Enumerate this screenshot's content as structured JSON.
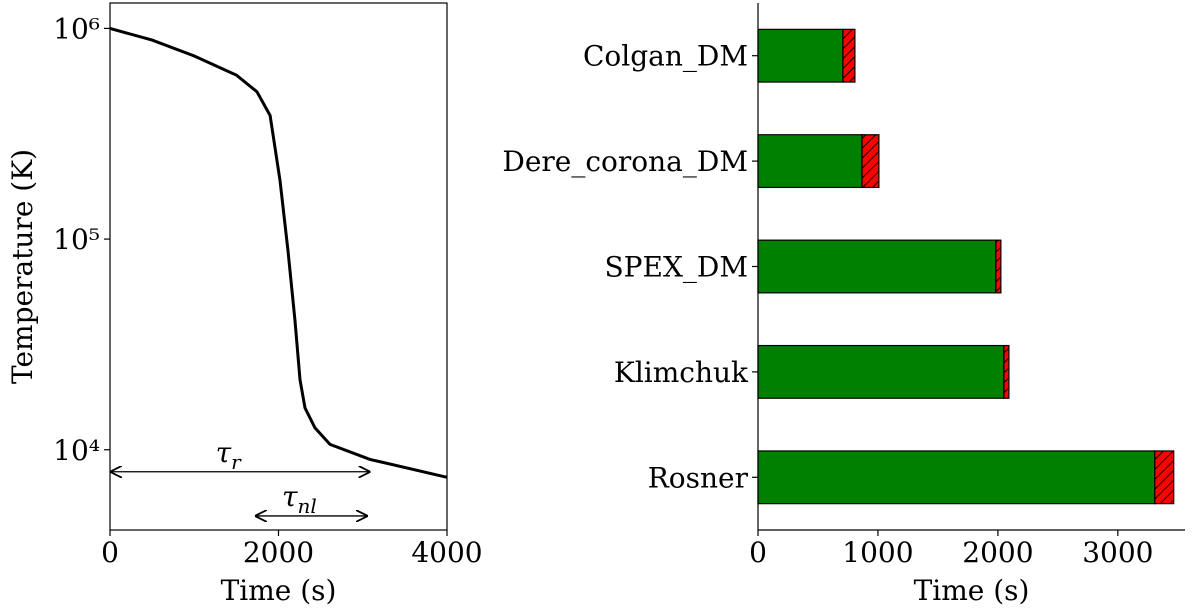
{
  "chart_data": [
    {
      "type": "line",
      "x": [
        0,
        500,
        1000,
        1500,
        1745,
        1900,
        2018,
        2113,
        2196,
        2255,
        2315,
        2433,
        2611,
        3086,
        4000
      ],
      "series": [
        {
          "color": "#000000",
          "values": [
            1000000,
            880000,
            740000,
            600000,
            500000,
            386000,
            190000,
            88000,
            41000,
            21500,
            15800,
            12700,
            10600,
            9000,
            7400
          ]
        }
      ],
      "xlabel": "Time (s)",
      "ylabel": "Temperature (K)",
      "xlim": [
        0,
        4000
      ],
      "xticks": [
        0,
        2000,
        4000
      ],
      "ylim": [
        4160,
        1320000
      ],
      "yscale": "log",
      "yticks": [
        {
          "value": 10000,
          "label": "10⁴"
        },
        {
          "value": 100000,
          "label": "10⁵"
        },
        {
          "value": 1000000,
          "label": "10⁶"
        }
      ],
      "annotations": [
        {
          "symbol": "τ",
          "subscript": "r",
          "x": [
            0,
            3090
          ],
          "y": 7860
        },
        {
          "symbol": "τ",
          "subscript": "nl",
          "x": [
            1720,
            3060
          ],
          "y": 4850
        }
      ]
    },
    {
      "type": "bar",
      "orientation": "horizontal",
      "stacked": true,
      "categories": [
        "Colgan_DM",
        "Dere_corona_DM",
        "SPEX_DM",
        "Klimchuk",
        "Rosner"
      ],
      "series": [
        {
          "color": "#008000",
          "values": [
            708,
            867,
            1983,
            2050,
            3308
          ]
        },
        {
          "color": "#ff0000",
          "hatch": true,
          "values": [
            100,
            141,
            42,
            42,
            158
          ]
        }
      ],
      "xlabel": "Time (s)",
      "xlim": [
        0,
        3560
      ],
      "xticks": [
        0,
        1000,
        2000,
        3000
      ]
    }
  ]
}
